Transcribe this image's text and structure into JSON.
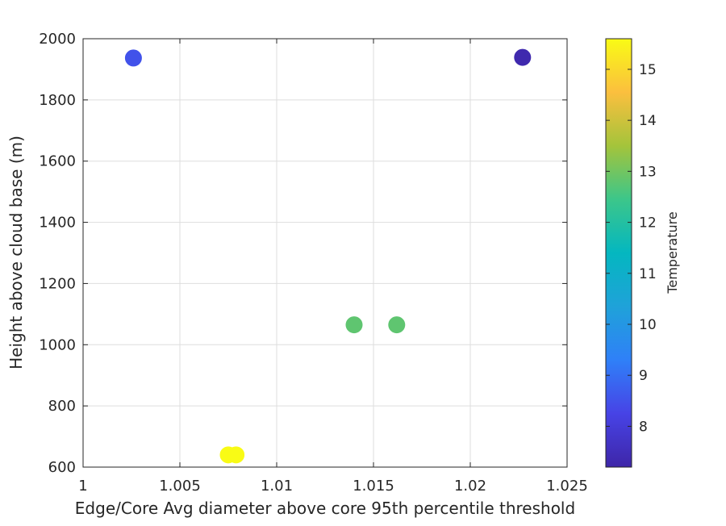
{
  "chart_data": {
    "type": "scatter",
    "title": "",
    "xlabel": "Edge/Core Avg diameter above core 95th percentile threshold",
    "ylabel": "Height above cloud base (m)",
    "xlim": [
      1,
      1.025
    ],
    "ylim": [
      600,
      2000
    ],
    "xticks": [
      1,
      1.005,
      1.01,
      1.015,
      1.02,
      1.025
    ],
    "xtick_labels": [
      "1",
      "1.005",
      "1.01",
      "1.015",
      "1.02",
      "1.025"
    ],
    "yticks": [
      600,
      800,
      1000,
      1200,
      1400,
      1600,
      1800,
      2000
    ],
    "ytick_labels": [
      "600",
      "800",
      "1000",
      "1200",
      "1400",
      "1600",
      "1800",
      "2000"
    ],
    "grid": true,
    "points": [
      {
        "x": 1.0026,
        "y": 1937,
        "c": 8.5
      },
      {
        "x": 1.0227,
        "y": 1939,
        "c": 7.3
      },
      {
        "x": 1.014,
        "y": 1065,
        "c": 12.8
      },
      {
        "x": 1.0162,
        "y": 1065,
        "c": 12.8
      },
      {
        "x": 1.0075,
        "y": 640,
        "c": 15.6
      },
      {
        "x": 1.0079,
        "y": 640,
        "c": 15.6
      }
    ],
    "colorbar": {
      "label": "Temperature",
      "lim": [
        7.2,
        15.6
      ],
      "ticks": [
        8,
        9,
        10,
        11,
        12,
        13,
        14,
        15
      ],
      "tick_labels": [
        "8",
        "9",
        "10",
        "11",
        "12",
        "13",
        "14",
        "15"
      ],
      "colormap": "parula"
    }
  }
}
